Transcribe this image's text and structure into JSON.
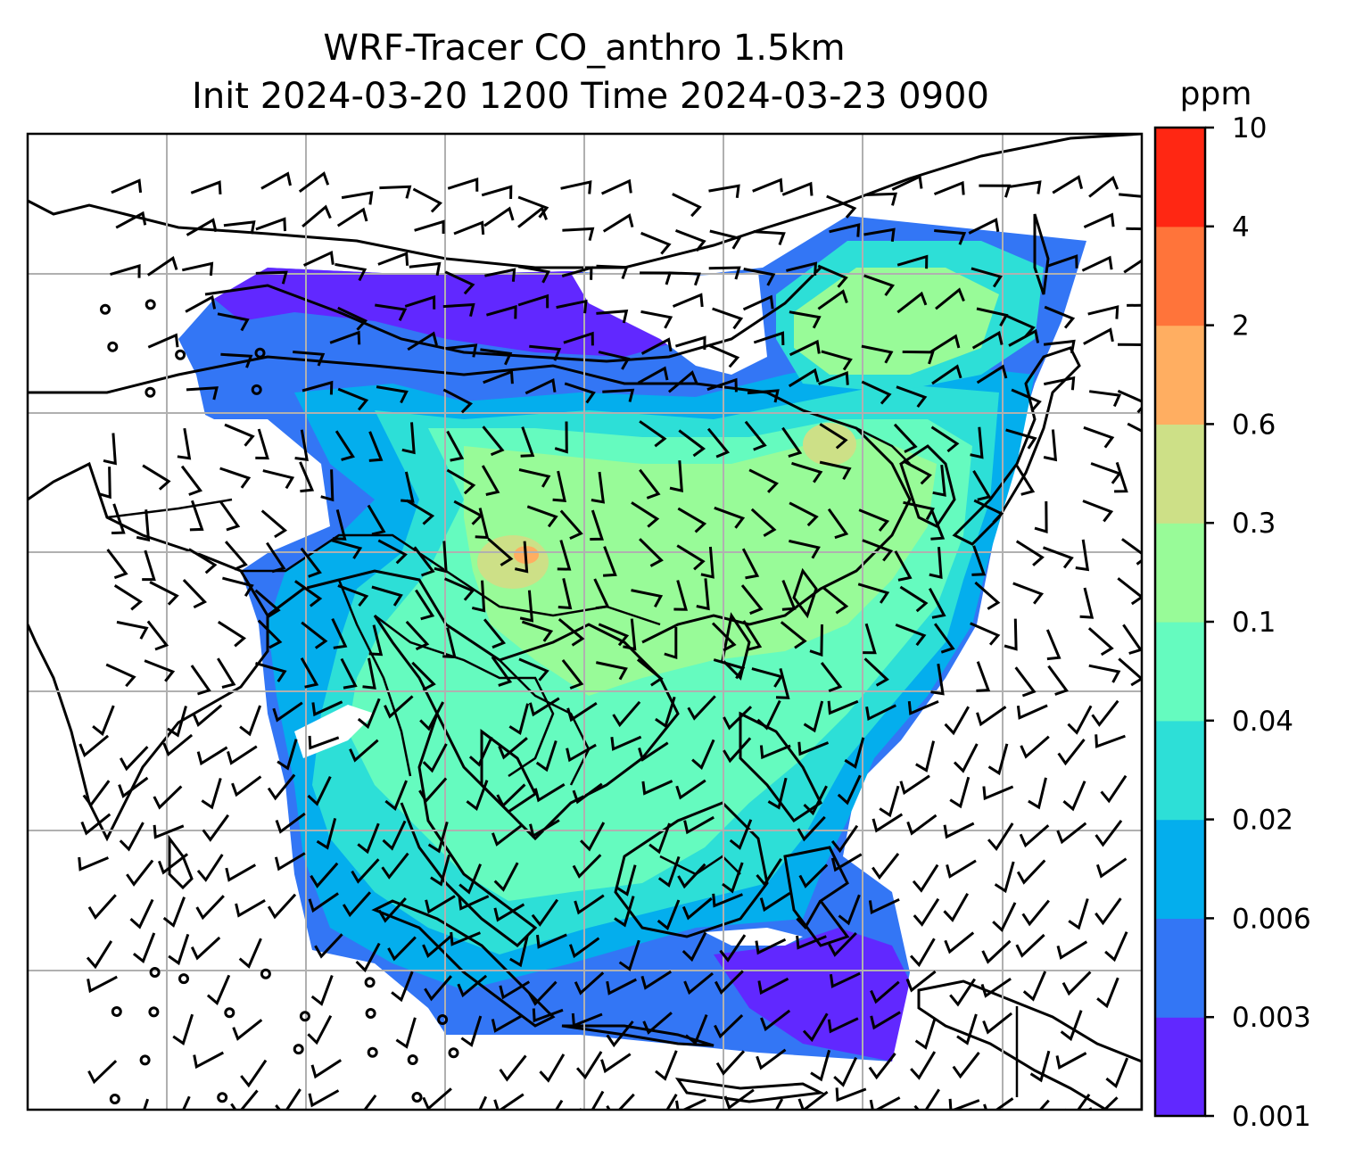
{
  "figure": {
    "title_line1": "WRF-Tracer CO_anthro 1.5km",
    "title_line2": "Init 2024-03-20 1200 Time 2024-03-23 0900"
  },
  "colorbar": {
    "unit": "ppm",
    "levels": [
      "0.001",
      "0.003",
      "0.006",
      "0.02",
      "0.04",
      "0.1",
      "0.3",
      "0.6",
      "2",
      "4",
      "10"
    ],
    "colors": [
      "#6128ff",
      "#3376f5",
      "#04aeed",
      "#2ddfd7",
      "#65fbbf",
      "#98fb98",
      "#cde087",
      "#ffae61",
      "#ff743a",
      "#ff2713"
    ]
  },
  "map": {
    "field": "CO_anthro",
    "gridlines": true,
    "wind_barbs": true
  }
}
